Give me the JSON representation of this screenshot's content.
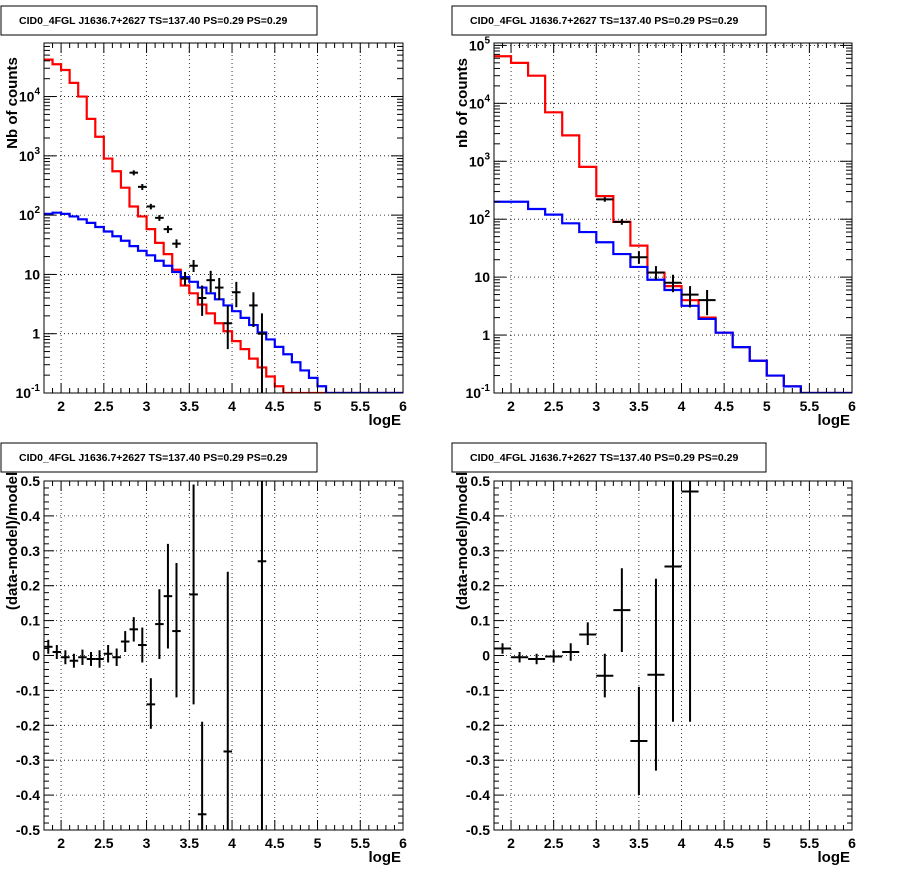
{
  "chart_data": [
    {
      "type": "line",
      "panel": "top-left",
      "title": "CID0_4FGL J1636.7+2627 TS=137.40 PS=0.29 PS=0.29",
      "xlabel": "logE",
      "ylabel": "Nb of counts",
      "xlim": [
        1.8,
        6.0
      ],
      "ylim": [
        0.1,
        80000
      ],
      "yscale": "log",
      "grid": true,
      "x_ticks": [
        "2",
        "2.5",
        "3",
        "3.5",
        "4",
        "4.5",
        "5",
        "5.5",
        "6"
      ],
      "y_ticks": [
        "10^-1",
        "1",
        "10",
        "10^2",
        "10^3",
        "10^4"
      ],
      "step_series": [
        {
          "color": "#ff0000",
          "bin_edges": [
            1.8,
            1.9,
            2.0,
            2.1,
            2.2,
            2.3,
            2.4,
            2.5,
            2.6,
            2.7,
            2.8,
            2.9,
            3.0,
            3.1,
            3.2,
            3.3,
            3.4,
            3.5,
            3.6,
            3.7,
            3.8,
            3.9,
            4.0,
            4.1,
            4.2,
            4.3,
            4.4,
            4.5,
            4.6,
            4.7,
            4.8,
            4.9,
            5.0,
            5.1,
            5.2,
            5.3,
            5.4,
            5.5,
            5.6,
            5.7,
            5.8,
            5.9,
            6.0
          ],
          "values": [
            42000,
            35000,
            28000,
            17000,
            10000,
            4200,
            2100,
            900,
            550,
            290,
            140,
            95,
            58,
            34,
            22,
            12,
            6.5,
            4.8,
            3.1,
            2.2,
            1.5,
            1.1,
            0.75,
            0.55,
            0.38,
            0.27,
            0.19,
            0.13,
            0.1,
            0.1,
            0.1,
            0.1,
            0.1,
            0.1,
            0.1,
            0.1,
            0.1,
            0.1,
            0.1,
            0.1,
            0.1,
            0.1
          ]
        },
        {
          "color": "#0000ff",
          "bin_edges": [
            1.8,
            1.9,
            2.0,
            2.1,
            2.2,
            2.3,
            2.4,
            2.5,
            2.6,
            2.7,
            2.8,
            2.9,
            3.0,
            3.1,
            3.2,
            3.3,
            3.4,
            3.5,
            3.6,
            3.7,
            3.8,
            3.9,
            4.0,
            4.1,
            4.2,
            4.3,
            4.4,
            4.5,
            4.6,
            4.7,
            4.8,
            4.9,
            5.0,
            5.1,
            5.2,
            5.3,
            5.4,
            5.5,
            5.6,
            5.7,
            5.8,
            5.9,
            6.0
          ],
          "values": [
            105,
            110,
            105,
            95,
            85,
            74,
            63,
            53,
            44,
            37,
            30,
            25,
            21,
            17,
            14,
            11,
            9,
            7.5,
            6,
            4.8,
            3.8,
            3,
            2.4,
            1.85,
            1.4,
            1.05,
            0.8,
            0.6,
            0.45,
            0.33,
            0.24,
            0.18,
            0.13,
            0.1,
            0.1,
            0.1,
            0.1,
            0.1,
            0.1,
            0.1,
            0.1,
            0.1
          ]
        }
      ],
      "points": [
        {
          "x": 2.85,
          "y": 520,
          "xerr": 0.05,
          "ylo": 470,
          "yhi": 570
        },
        {
          "x": 2.95,
          "y": 300,
          "xerr": 0.05,
          "ylo": 265,
          "yhi": 335
        },
        {
          "x": 3.05,
          "y": 140,
          "xerr": 0.05,
          "ylo": 125,
          "yhi": 155
        },
        {
          "x": 3.15,
          "y": 90,
          "xerr": 0.05,
          "ylo": 80,
          "yhi": 100
        },
        {
          "x": 3.25,
          "y": 58,
          "xerr": 0.05,
          "ylo": 50,
          "yhi": 66
        },
        {
          "x": 3.35,
          "y": 33,
          "xerr": 0.05,
          "ylo": 28,
          "yhi": 39
        },
        {
          "x": 3.45,
          "y": 8.5,
          "xerr": 0.05,
          "ylo": 6.5,
          "yhi": 11
        },
        {
          "x": 3.55,
          "y": 14,
          "xerr": 0.05,
          "ylo": 11,
          "yhi": 17.5
        },
        {
          "x": 3.65,
          "y": 4,
          "xerr": 0.05,
          "ylo": 2,
          "yhi": 6.5
        },
        {
          "x": 3.75,
          "y": 8,
          "xerr": 0.05,
          "ylo": 5,
          "yhi": 11.5
        },
        {
          "x": 3.85,
          "y": 6,
          "xerr": 0.05,
          "ylo": 3.7,
          "yhi": 8.7
        },
        {
          "x": 3.95,
          "y": 1.5,
          "xerr": 0.05,
          "ylo": 0.55,
          "yhi": 3
        },
        {
          "x": 4.05,
          "y": 5,
          "xerr": 0.05,
          "ylo": 2.8,
          "yhi": 7.5
        },
        {
          "x": 4.25,
          "y": 3,
          "xerr": 0.05,
          "ylo": 1.3,
          "yhi": 5
        },
        {
          "x": 4.35,
          "y": 1,
          "xerr": 0.05,
          "ylo": 0.1,
          "yhi": 2.2
        }
      ]
    },
    {
      "type": "line",
      "panel": "top-right",
      "title": "CID0_4FGL J1636.7+2627 TS=137.40 PS=0.29 PS=0.29",
      "xlabel": "logE",
      "ylabel": "nb of counts",
      "xlim": [
        1.8,
        6.0
      ],
      "ylim": [
        0.1,
        110000
      ],
      "yscale": "log",
      "grid": true,
      "x_ticks": [
        "2",
        "2.5",
        "3",
        "3.5",
        "4",
        "4.5",
        "5",
        "5.5",
        "6"
      ],
      "y_ticks": [
        "10^-1",
        "1",
        "10",
        "10^2",
        "10^3",
        "10^4",
        "10^5"
      ],
      "step_series": [
        {
          "color": "#ff0000",
          "bin_edges": [
            1.8,
            2.0,
            2.2,
            2.4,
            2.6,
            2.8,
            3.0,
            3.2,
            3.4,
            3.6,
            3.8,
            4.0,
            4.2,
            4.4,
            4.6,
            4.8,
            5.0,
            5.2,
            5.4,
            5.6,
            5.8,
            6.0
          ],
          "values": [
            65000,
            50000,
            30000,
            7000,
            2800,
            800,
            250,
            90,
            35,
            12,
            7,
            4,
            2,
            1.1,
            0.62,
            0.36,
            0.2,
            0.13,
            0.1,
            0.1,
            0.1
          ]
        },
        {
          "color": "#0000ff",
          "bin_edges": [
            1.8,
            2.0,
            2.2,
            2.4,
            2.6,
            2.8,
            3.0,
            3.2,
            3.4,
            3.6,
            3.8,
            4.0,
            4.2,
            4.4,
            4.6,
            4.8,
            5.0,
            5.2,
            5.4,
            5.6,
            5.8,
            6.0
          ],
          "values": [
            200,
            200,
            150,
            120,
            85,
            60,
            40,
            25,
            15,
            9,
            6,
            3.2,
            1.9,
            1.1,
            0.62,
            0.36,
            0.2,
            0.13,
            0.1,
            0.1,
            0.1
          ]
        }
      ],
      "points": [
        {
          "x": 3.1,
          "y": 220,
          "xerr": 0.1,
          "ylo": 200,
          "yhi": 240
        },
        {
          "x": 3.3,
          "y": 90,
          "xerr": 0.1,
          "ylo": 80,
          "yhi": 100
        },
        {
          "x": 3.5,
          "y": 22,
          "xerr": 0.1,
          "ylo": 17,
          "yhi": 28
        },
        {
          "x": 3.7,
          "y": 12,
          "xerr": 0.1,
          "ylo": 9,
          "yhi": 15.5
        },
        {
          "x": 3.9,
          "y": 8,
          "xerr": 0.1,
          "ylo": 5.5,
          "yhi": 11
        },
        {
          "x": 4.1,
          "y": 5,
          "xerr": 0.1,
          "ylo": 3,
          "yhi": 7
        },
        {
          "x": 4.3,
          "y": 4,
          "xerr": 0.1,
          "ylo": 2.2,
          "yhi": 6
        }
      ]
    },
    {
      "type": "scatter",
      "panel": "bottom-left",
      "title": "CID0_4FGL J1636.7+2627 TS=137.40 PS=0.29 PS=0.29",
      "xlabel": "logE",
      "ylabel": "(data-model)/model",
      "xlim": [
        1.8,
        6.0
      ],
      "ylim": [
        -0.5,
        0.5
      ],
      "grid": true,
      "x_ticks": [
        "2",
        "2.5",
        "3",
        "3.5",
        "4",
        "4.5",
        "5",
        "5.5",
        "6"
      ],
      "y_ticks": [
        "-0.5",
        "-0.4",
        "-0.3",
        "-0.2",
        "-0.1",
        "0",
        "0.1",
        "0.2",
        "0.3",
        "0.4",
        "0.5"
      ],
      "points": [
        {
          "x": 1.85,
          "y": 0.025,
          "xerr": 0.05,
          "ylo": 0.005,
          "yhi": 0.045
        },
        {
          "x": 1.95,
          "y": 0.01,
          "xerr": 0.05,
          "ylo": -0.01,
          "yhi": 0.03
        },
        {
          "x": 2.05,
          "y": -0.005,
          "xerr": 0.05,
          "ylo": -0.025,
          "yhi": 0.015
        },
        {
          "x": 2.15,
          "y": -0.015,
          "xerr": 0.05,
          "ylo": -0.035,
          "yhi": 0.005
        },
        {
          "x": 2.25,
          "y": -0.005,
          "xerr": 0.05,
          "ylo": -0.027,
          "yhi": 0.017
        },
        {
          "x": 2.35,
          "y": -0.01,
          "xerr": 0.05,
          "ylo": -0.03,
          "yhi": 0.01
        },
        {
          "x": 2.45,
          "y": -0.01,
          "xerr": 0.05,
          "ylo": -0.035,
          "yhi": 0.015
        },
        {
          "x": 2.55,
          "y": 0.005,
          "xerr": 0.05,
          "ylo": -0.02,
          "yhi": 0.03
        },
        {
          "x": 2.65,
          "y": -0.005,
          "xerr": 0.05,
          "ylo": -0.03,
          "yhi": 0.02
        },
        {
          "x": 2.75,
          "y": 0.04,
          "xerr": 0.05,
          "ylo": 0.01,
          "yhi": 0.07
        },
        {
          "x": 2.85,
          "y": 0.075,
          "xerr": 0.05,
          "ylo": 0.04,
          "yhi": 0.11
        },
        {
          "x": 2.95,
          "y": 0.03,
          "xerr": 0.05,
          "ylo": -0.02,
          "yhi": 0.08
        },
        {
          "x": 3.05,
          "y": -0.14,
          "xerr": 0.05,
          "ylo": -0.21,
          "yhi": -0.065
        },
        {
          "x": 3.15,
          "y": 0.09,
          "xerr": 0.05,
          "ylo": -0.01,
          "yhi": 0.19
        },
        {
          "x": 3.25,
          "y": 0.17,
          "xerr": 0.05,
          "ylo": 0.02,
          "yhi": 0.32
        },
        {
          "x": 3.35,
          "y": 0.07,
          "xerr": 0.05,
          "ylo": -0.12,
          "yhi": 0.265
        },
        {
          "x": 3.55,
          "y": 0.175,
          "xerr": 0.05,
          "ylo": -0.14,
          "yhi": 0.49
        },
        {
          "x": 3.65,
          "y": -0.455,
          "xerr": 0.05,
          "ylo": -0.5,
          "yhi": -0.19
        },
        {
          "x": 3.95,
          "y": -0.275,
          "xerr": 0.05,
          "ylo": -0.5,
          "yhi": 0.24
        },
        {
          "x": 4.35,
          "y": 0.27,
          "xerr": 0.05,
          "ylo": -0.5,
          "yhi": 0.5
        }
      ]
    },
    {
      "type": "scatter",
      "panel": "bottom-right",
      "title": "CID0_4FGL J1636.7+2627 TS=137.40 PS=0.29 PS=0.29",
      "xlabel": "logE",
      "ylabel": "(data-model)/model",
      "xlim": [
        1.8,
        6.0
      ],
      "ylim": [
        -0.5,
        0.5
      ],
      "grid": true,
      "x_ticks": [
        "2",
        "2.5",
        "3",
        "3.5",
        "4",
        "4.5",
        "5",
        "5.5",
        "6"
      ],
      "y_ticks": [
        "-0.5",
        "-0.4",
        "-0.3",
        "-0.2",
        "-0.1",
        "0",
        "0.1",
        "0.2",
        "0.3",
        "0.4",
        "0.5"
      ],
      "points": [
        {
          "x": 1.9,
          "y": 0.02,
          "xerr": 0.1,
          "ylo": 0.005,
          "yhi": 0.035
        },
        {
          "x": 2.1,
          "y": -0.005,
          "xerr": 0.1,
          "ylo": -0.02,
          "yhi": 0.01
        },
        {
          "x": 2.3,
          "y": -0.01,
          "xerr": 0.1,
          "ylo": -0.025,
          "yhi": 0.005
        },
        {
          "x": 2.5,
          "y": -0.003,
          "xerr": 0.1,
          "ylo": -0.02,
          "yhi": 0.015
        },
        {
          "x": 2.7,
          "y": 0.01,
          "xerr": 0.1,
          "ylo": -0.015,
          "yhi": 0.035
        },
        {
          "x": 2.9,
          "y": 0.06,
          "xerr": 0.1,
          "ylo": 0.03,
          "yhi": 0.095
        },
        {
          "x": 3.1,
          "y": -0.058,
          "xerr": 0.1,
          "ylo": -0.12,
          "yhi": 0.005
        },
        {
          "x": 3.3,
          "y": 0.13,
          "xerr": 0.1,
          "ylo": 0.01,
          "yhi": 0.25
        },
        {
          "x": 3.5,
          "y": -0.245,
          "xerr": 0.1,
          "ylo": -0.4,
          "yhi": -0.09
        },
        {
          "x": 3.7,
          "y": -0.055,
          "xerr": 0.1,
          "ylo": -0.33,
          "yhi": 0.22
        },
        {
          "x": 3.9,
          "y": 0.255,
          "xerr": 0.1,
          "ylo": -0.19,
          "yhi": 0.5
        },
        {
          "x": 4.1,
          "y": 0.47,
          "xerr": 0.1,
          "ylo": -0.19,
          "yhi": 0.5
        }
      ]
    }
  ]
}
